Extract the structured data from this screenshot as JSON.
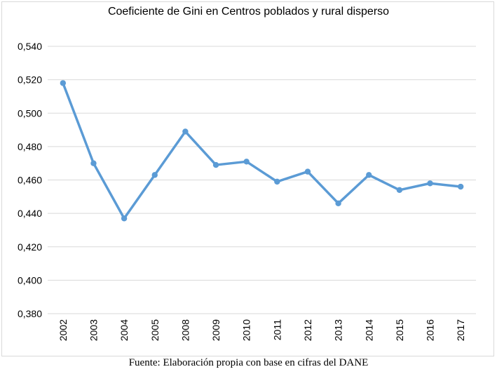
{
  "chart_data": {
    "type": "line",
    "title": "Coeficiente de Gini en Centros poblados y rural disperso",
    "xlabel": "",
    "ylabel": "",
    "categories": [
      "2002",
      "2003",
      "2004",
      "2005",
      "2008",
      "2009",
      "2010",
      "2011",
      "2012",
      "2013",
      "2014",
      "2015",
      "2016",
      "2017"
    ],
    "series": [
      {
        "values": [
          0.518,
          0.47,
          0.437,
          0.463,
          0.489,
          0.469,
          0.471,
          0.459,
          0.465,
          0.446,
          0.463,
          0.454,
          0.458,
          0.456
        ]
      }
    ],
    "ylim": [
      0.38,
      0.54
    ],
    "yticks": [
      0.38,
      0.4,
      0.42,
      0.44,
      0.46,
      0.48,
      0.5,
      0.52,
      0.54
    ],
    "ytick_labels": [
      "0,380",
      "0,400",
      "0,420",
      "0,440",
      "0,460",
      "0,480",
      "0,500",
      "0,520",
      "0,540"
    ],
    "grid": true,
    "legend": false,
    "line_color": "#5b9bd5",
    "grid_color": "#d9d9d9"
  },
  "source_note": "Fuente: Elaboración propia con base en cifras del DANE"
}
